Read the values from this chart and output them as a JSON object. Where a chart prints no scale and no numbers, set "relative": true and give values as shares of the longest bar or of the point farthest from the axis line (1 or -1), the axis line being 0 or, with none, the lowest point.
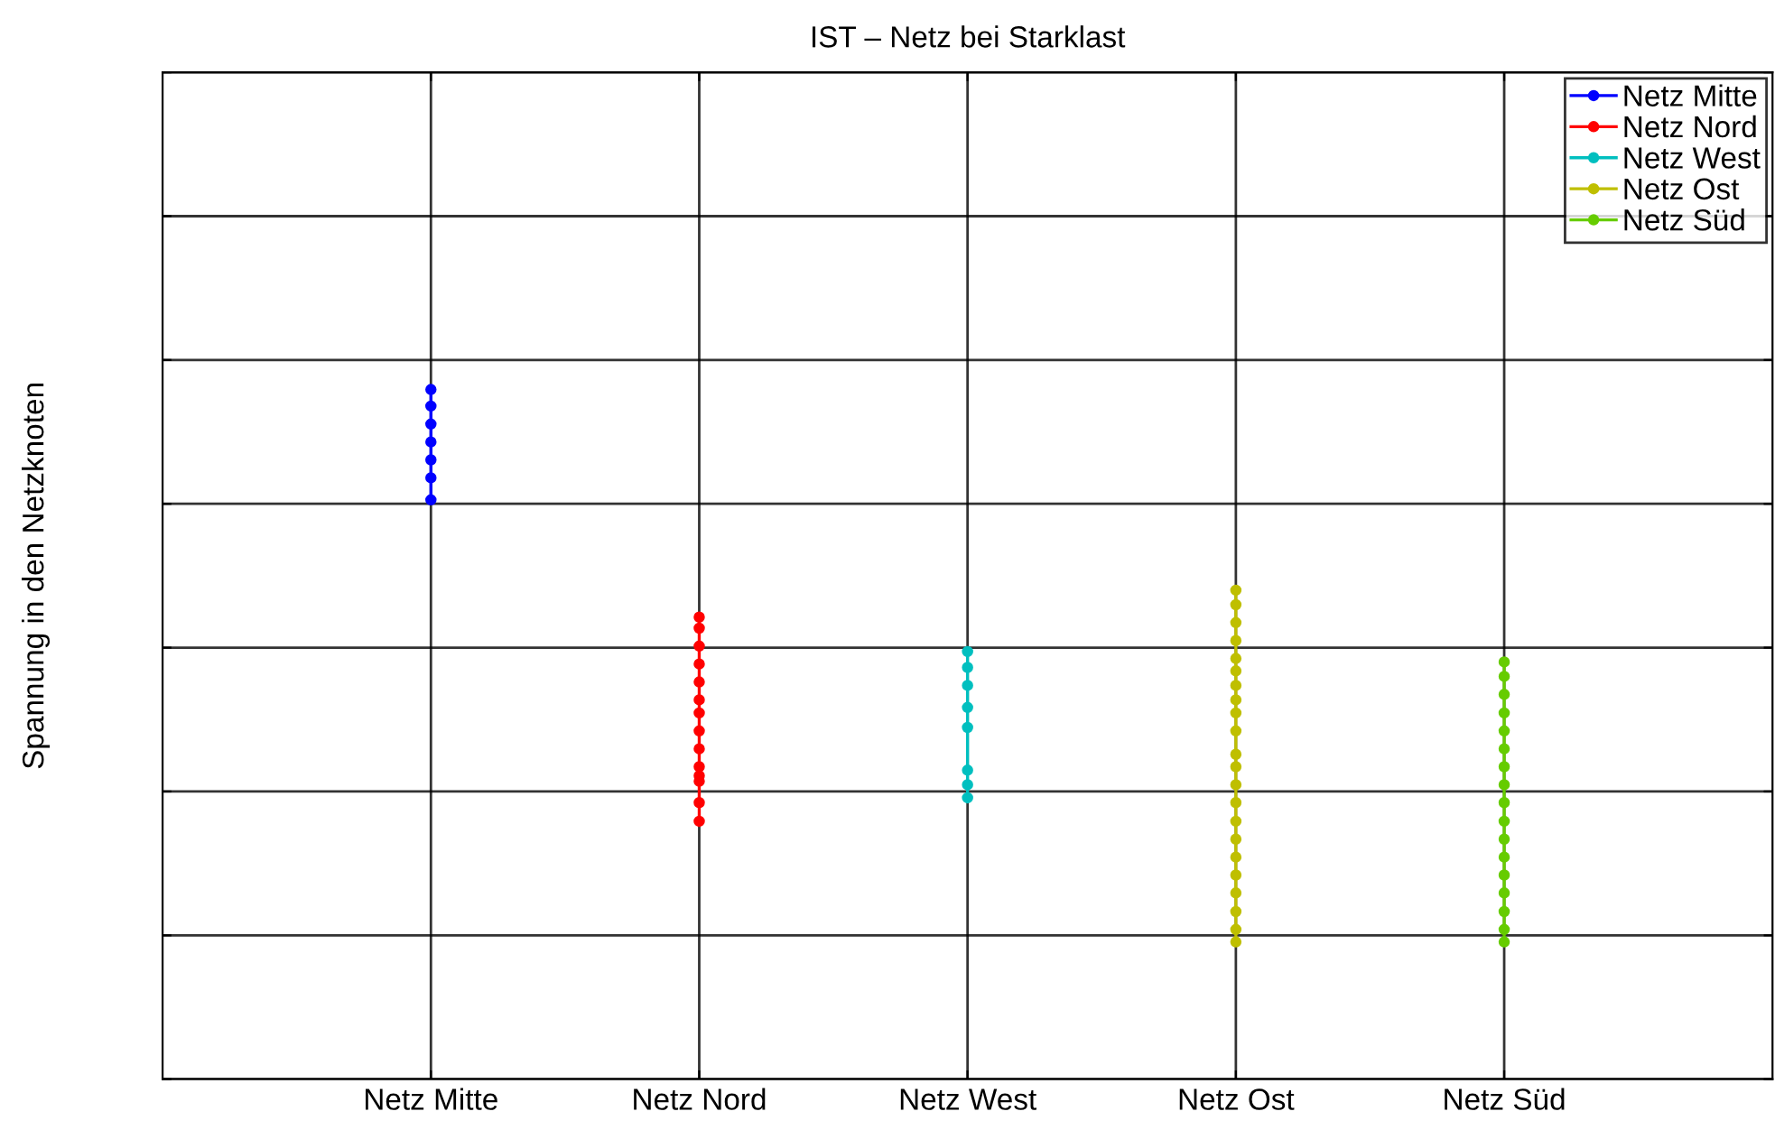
{
  "chart_data": {
    "type": "line",
    "title": "IST – Netz bei Starklast",
    "ylabel": "Spannung in den Netzknoten",
    "relative": true,
    "categories": [
      "Netz Mitte",
      "Netz Nord",
      "Netz West",
      "Netz Ost",
      "Netz Süd"
    ],
    "grid": true,
    "legend": "top right",
    "marker": "circle",
    "line_style": "solid",
    "tick_labels": "x",
    "series": [
      {
        "name": "Netz Mitte",
        "color": "#0000ff",
        "x": [
          "Netz Mitte",
          "Netz Mitte",
          "Netz Mitte",
          "Netz Mitte",
          "Netz Mitte",
          "Netz Mitte",
          "Netz Mitte"
        ],
        "values": [
          1.0,
          0.976,
          0.95,
          0.924,
          0.898,
          0.872,
          0.84
        ]
      },
      {
        "name": "Netz Nord",
        "color": "#ff0000",
        "x": [
          "Netz Nord",
          "Netz Nord",
          "Netz Nord",
          "Netz Nord",
          "Netz Nord",
          "Netz Nord",
          "Netz Nord",
          "Netz Nord",
          "Netz Nord",
          "Netz Nord",
          "Netz Nord",
          "Netz Nord",
          "Netz Nord",
          "Netz Nord"
        ],
        "values": [
          0.67,
          0.654,
          0.628,
          0.602,
          0.576,
          0.55,
          0.531,
          0.505,
          0.479,
          0.453,
          0.44,
          0.432,
          0.401,
          0.374
        ]
      },
      {
        "name": "Netz West",
        "color": "#00bfbf",
        "x": [
          "Netz West",
          "Netz West",
          "Netz West",
          "Netz West",
          "Netz West",
          "Netz West",
          "Netz West",
          "Netz West"
        ],
        "values": [
          0.62,
          0.597,
          0.571,
          0.539,
          0.51,
          0.448,
          0.427,
          0.408
        ]
      },
      {
        "name": "Netz Ost",
        "color": "#bfbf00",
        "x": [
          "Netz Ost",
          "Netz Ost",
          "Netz Ost",
          "Netz Ost",
          "Netz Ost",
          "Netz Ost",
          "Netz Ost",
          "Netz Ost",
          "Netz Ost",
          "Netz Ost",
          "Netz Ost",
          "Netz Ost",
          "Netz Ost",
          "Netz Ost",
          "Netz Ost",
          "Netz Ost",
          "Netz Ost",
          "Netz Ost",
          "Netz Ost",
          "Netz Ost",
          "Netz Ost",
          "Netz Ost"
        ],
        "values": [
          0.709,
          0.688,
          0.662,
          0.636,
          0.61,
          0.592,
          0.571,
          0.55,
          0.531,
          0.505,
          0.471,
          0.453,
          0.427,
          0.401,
          0.374,
          0.348,
          0.322,
          0.296,
          0.27,
          0.243,
          0.217,
          0.199
        ]
      },
      {
        "name": "Netz Süd",
        "color": "#66cc00",
        "x": [
          "Netz Süd",
          "Netz Süd",
          "Netz Süd",
          "Netz Süd",
          "Netz Süd",
          "Netz Süd",
          "Netz Süd",
          "Netz Süd",
          "Netz Süd",
          "Netz Süd",
          "Netz Süd",
          "Netz Süd",
          "Netz Süd",
          "Netz Süd",
          "Netz Süd",
          "Netz Süd",
          "Netz Süd"
        ],
        "values": [
          0.605,
          0.584,
          0.558,
          0.531,
          0.505,
          0.479,
          0.453,
          0.427,
          0.401,
          0.374,
          0.348,
          0.322,
          0.296,
          0.27,
          0.243,
          0.217,
          0.199
        ]
      }
    ]
  }
}
